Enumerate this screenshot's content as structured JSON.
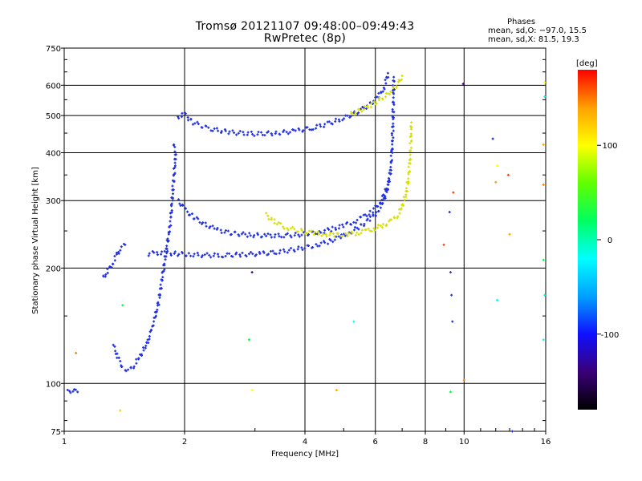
{
  "header": {
    "title_line1": "Tromsø 20121107 09:48:00–09:49:43",
    "title_line2": "RwPretec (8p)",
    "info_heading": "Phases",
    "info_o": "mean, sd,O: −97.0, 15.5",
    "info_x": "mean, sd,X:  81.5, 19.3"
  },
  "chart_data": {
    "type": "scatter",
    "xlabel": "Frequency [MHz]",
    "ylabel": "Stationary phase Virtual Height [km]",
    "x_scale": "log",
    "y_scale": "log",
    "xlim": [
      1,
      16
    ],
    "ylim": [
      75,
      750
    ],
    "x_ticks": [
      1,
      2,
      4,
      6,
      8,
      10,
      16
    ],
    "y_ticks": [
      75,
      100,
      200,
      300,
      400,
      500,
      600,
      750
    ],
    "grid": true,
    "colorbar": {
      "label": "[deg]",
      "range": [
        -180,
        180
      ],
      "ticks": [
        100,
        0,
        -100
      ],
      "colors": [
        "#000000",
        "#3a0078",
        "#1010ff",
        "#00a0ff",
        "#00ffff",
        "#00ff60",
        "#60ff00",
        "#ffff00",
        "#ffa000",
        "#ff0000"
      ]
    },
    "series": [
      {
        "polarization": "O",
        "color": "#2030e0",
        "points": [
          [
            1.02,
            95
          ],
          [
            1.05,
            96
          ],
          [
            1.08,
            95
          ],
          [
            1.25,
            188
          ],
          [
            1.28,
            196
          ],
          [
            1.32,
            205
          ],
          [
            1.35,
            215
          ],
          [
            1.38,
            225
          ],
          [
            1.42,
            230
          ],
          [
            1.33,
            125
          ],
          [
            1.36,
            118
          ],
          [
            1.4,
            110
          ],
          [
            1.45,
            108
          ],
          [
            1.5,
            112
          ],
          [
            1.55,
            118
          ],
          [
            1.6,
            125
          ],
          [
            1.63,
            132
          ],
          [
            1.66,
            140
          ],
          [
            1.69,
            150
          ],
          [
            1.72,
            162
          ],
          [
            1.74,
            175
          ],
          [
            1.76,
            190
          ],
          [
            1.78,
            205
          ],
          [
            1.8,
            222
          ],
          [
            1.82,
            240
          ],
          [
            1.84,
            258
          ],
          [
            1.85,
            275
          ],
          [
            1.86,
            295
          ],
          [
            1.87,
            320
          ],
          [
            1.88,
            345
          ],
          [
            1.89,
            370
          ],
          [
            1.9,
            395
          ],
          [
            1.88,
            420
          ],
          [
            1.62,
            218
          ],
          [
            1.7,
            219
          ],
          [
            1.8,
            219
          ],
          [
            1.92,
            218
          ],
          [
            2.05,
            217
          ],
          [
            2.25,
            216
          ],
          [
            2.5,
            216
          ],
          [
            2.8,
            217
          ],
          [
            3.1,
            218
          ],
          [
            3.4,
            220
          ],
          [
            3.7,
            223
          ],
          [
            4.0,
            226
          ],
          [
            4.3,
            230
          ],
          [
            4.6,
            235
          ],
          [
            4.9,
            241
          ],
          [
            5.2,
            248
          ],
          [
            5.5,
            257
          ],
          [
            5.8,
            268
          ],
          [
            6.1,
            282
          ],
          [
            6.3,
            300
          ],
          [
            6.45,
            325
          ],
          [
            6.55,
            360
          ],
          [
            6.6,
            400
          ],
          [
            6.63,
            450
          ],
          [
            6.65,
            510
          ],
          [
            6.66,
            570
          ],
          [
            6.67,
            630
          ],
          [
            1.93,
            300
          ],
          [
            2.0,
            285
          ],
          [
            2.1,
            272
          ],
          [
            2.25,
            260
          ],
          [
            2.4,
            252
          ],
          [
            2.6,
            247
          ],
          [
            2.9,
            244
          ],
          [
            3.2,
            243
          ],
          [
            3.5,
            243
          ],
          [
            3.8,
            244
          ],
          [
            4.1,
            246
          ],
          [
            4.4,
            249
          ],
          [
            4.7,
            253
          ],
          [
            5.0,
            258
          ],
          [
            5.3,
            264
          ],
          [
            5.6,
            272
          ],
          [
            5.9,
            282
          ],
          [
            6.15,
            296
          ],
          [
            6.35,
            315
          ],
          [
            6.5,
            340
          ],
          [
            1.92,
            495
          ],
          [
            2.0,
            505
          ],
          [
            2.1,
            480
          ],
          [
            2.3,
            462
          ],
          [
            2.6,
            452
          ],
          [
            3.0,
            448
          ],
          [
            3.4,
            450
          ],
          [
            3.8,
            456
          ],
          [
            4.2,
            465
          ],
          [
            4.6,
            477
          ],
          [
            5.0,
            492
          ],
          [
            5.4,
            510
          ],
          [
            5.8,
            535
          ],
          [
            6.1,
            560
          ],
          [
            6.3,
            590
          ],
          [
            6.4,
            620
          ],
          [
            6.45,
            645
          ]
        ]
      },
      {
        "polarization": "X",
        "color": "#d8e000",
        "points": [
          [
            3.2,
            275
          ],
          [
            3.4,
            262
          ],
          [
            3.6,
            255
          ],
          [
            3.9,
            250
          ],
          [
            4.2,
            247
          ],
          [
            4.5,
            245
          ],
          [
            4.8,
            244
          ],
          [
            5.1,
            245
          ],
          [
            5.4,
            247
          ],
          [
            5.7,
            250
          ],
          [
            6.0,
            254
          ],
          [
            6.3,
            259
          ],
          [
            6.6,
            266
          ],
          [
            6.85,
            276
          ],
          [
            7.0,
            290
          ],
          [
            7.15,
            310
          ],
          [
            7.25,
            340
          ],
          [
            7.32,
            380
          ],
          [
            7.36,
            430
          ],
          [
            7.38,
            480
          ],
          [
            5.2,
            505
          ],
          [
            5.6,
            520
          ],
          [
            6.0,
            540
          ],
          [
            6.4,
            565
          ],
          [
            6.8,
            600
          ],
          [
            7.0,
            635
          ]
        ]
      }
    ],
    "scatter_points": [
      [
        1.07,
        120,
        "#ff8000"
      ],
      [
        1.38,
        85,
        "#ffd000"
      ],
      [
        1.4,
        160,
        "#00ff40"
      ],
      [
        2.95,
        195,
        "#3a0078"
      ],
      [
        2.9,
        130,
        "#00ff40"
      ],
      [
        2.95,
        96,
        "#ffff00"
      ],
      [
        4.8,
        96,
        "#ffa000"
      ],
      [
        5.3,
        145,
        "#00ffff"
      ],
      [
        8.9,
        230,
        "#ff4000"
      ],
      [
        9.2,
        280,
        "#2030e0"
      ],
      [
        9.25,
        195,
        "#2030e0"
      ],
      [
        9.3,
        170,
        "#2030e0"
      ],
      [
        9.35,
        145,
        "#2030e0"
      ],
      [
        9.4,
        315,
        "#ff4000"
      ],
      [
        9.25,
        95,
        "#00ff40"
      ],
      [
        9.95,
        605,
        "#3a0078"
      ],
      [
        10.0,
        102,
        "#ff8000"
      ],
      [
        11.8,
        435,
        "#2030e0"
      ],
      [
        12.1,
        370,
        "#ffff00"
      ],
      [
        12.0,
        335,
        "#ffa000"
      ],
      [
        12.1,
        165,
        "#00ffff"
      ],
      [
        12.9,
        350,
        "#ff4000"
      ],
      [
        13.0,
        245,
        "#ffa000"
      ],
      [
        13.2,
        75,
        "#2030e0"
      ],
      [
        15.8,
        420,
        "#ffa000"
      ],
      [
        15.8,
        330,
        "#ff8000"
      ],
      [
        15.9,
        560,
        "#00ffff"
      ],
      [
        15.8,
        210,
        "#00ff40"
      ],
      [
        15.9,
        170,
        "#00ffff"
      ],
      [
        15.8,
        130,
        "#00ffff"
      ],
      [
        15.9,
        610,
        "#ffff00"
      ]
    ]
  }
}
